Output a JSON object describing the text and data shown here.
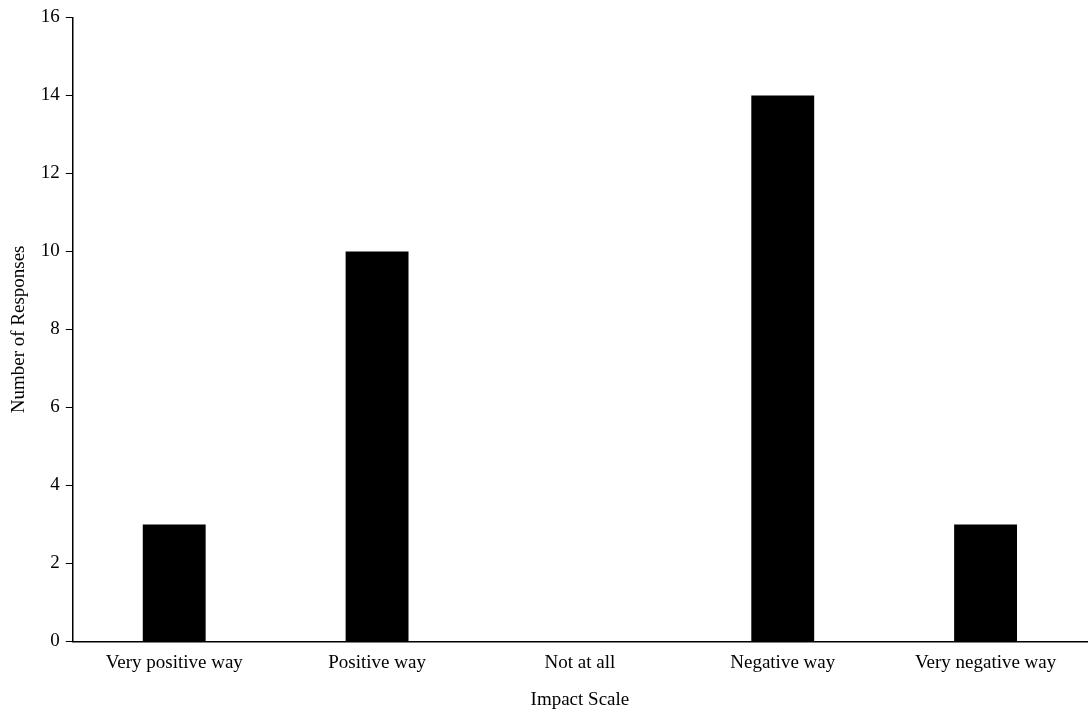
{
  "chart_data": {
    "type": "bar",
    "xlabel": "Impact Scale",
    "ylabel": "Number of Responses",
    "categories": [
      "Very positive way",
      "Positive way",
      "Not at all",
      "Negative way",
      "Very negative way"
    ],
    "values": [
      3,
      10,
      0,
      14,
      3
    ],
    "color": "#000000",
    "ylim": [
      0,
      16
    ],
    "yticks": [
      0,
      2,
      4,
      6,
      8,
      10,
      12,
      14,
      16
    ],
    "grid": false,
    "legend": false
  }
}
